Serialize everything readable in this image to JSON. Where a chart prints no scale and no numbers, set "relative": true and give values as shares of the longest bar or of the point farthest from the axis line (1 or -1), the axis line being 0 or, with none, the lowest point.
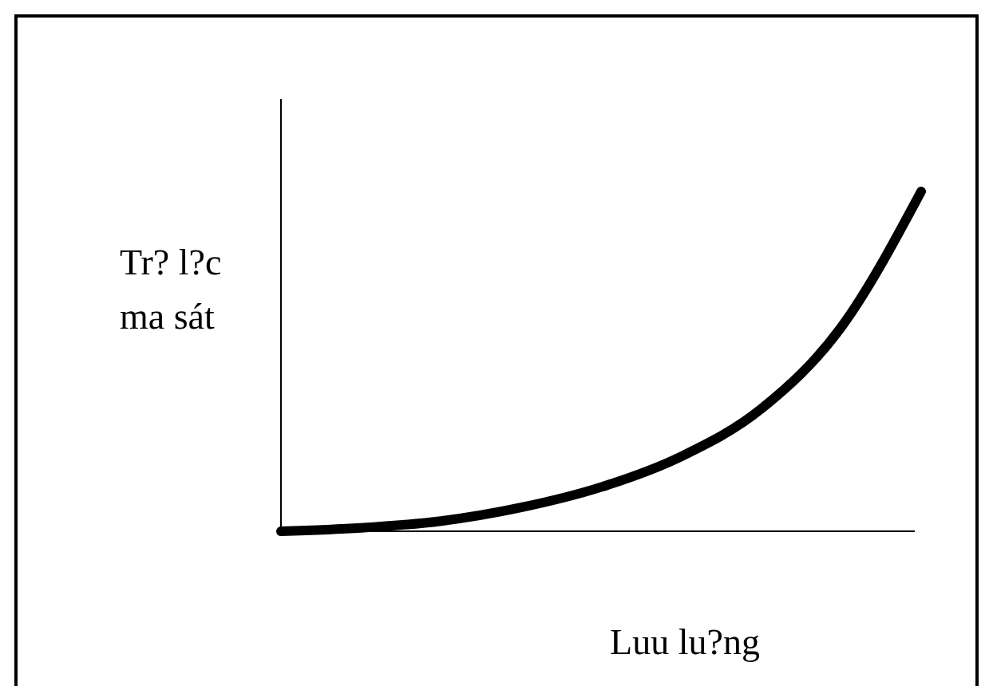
{
  "chart_data": {
    "type": "line",
    "relative": true,
    "xlabel": "Luu lu?ng",
    "ylabel": "Tr? l?c\nma sát",
    "categories": [
      null,
      null,
      null,
      null,
      null,
      null,
      null,
      null,
      null
    ],
    "series": [
      {
        "color": "#000000",
        "values": [
          0,
          0.01,
          0.03,
          0.07,
          0.13,
          0.22,
          0.36,
          0.6,
          1
        ]
      }
    ],
    "line_style": "solid"
  }
}
